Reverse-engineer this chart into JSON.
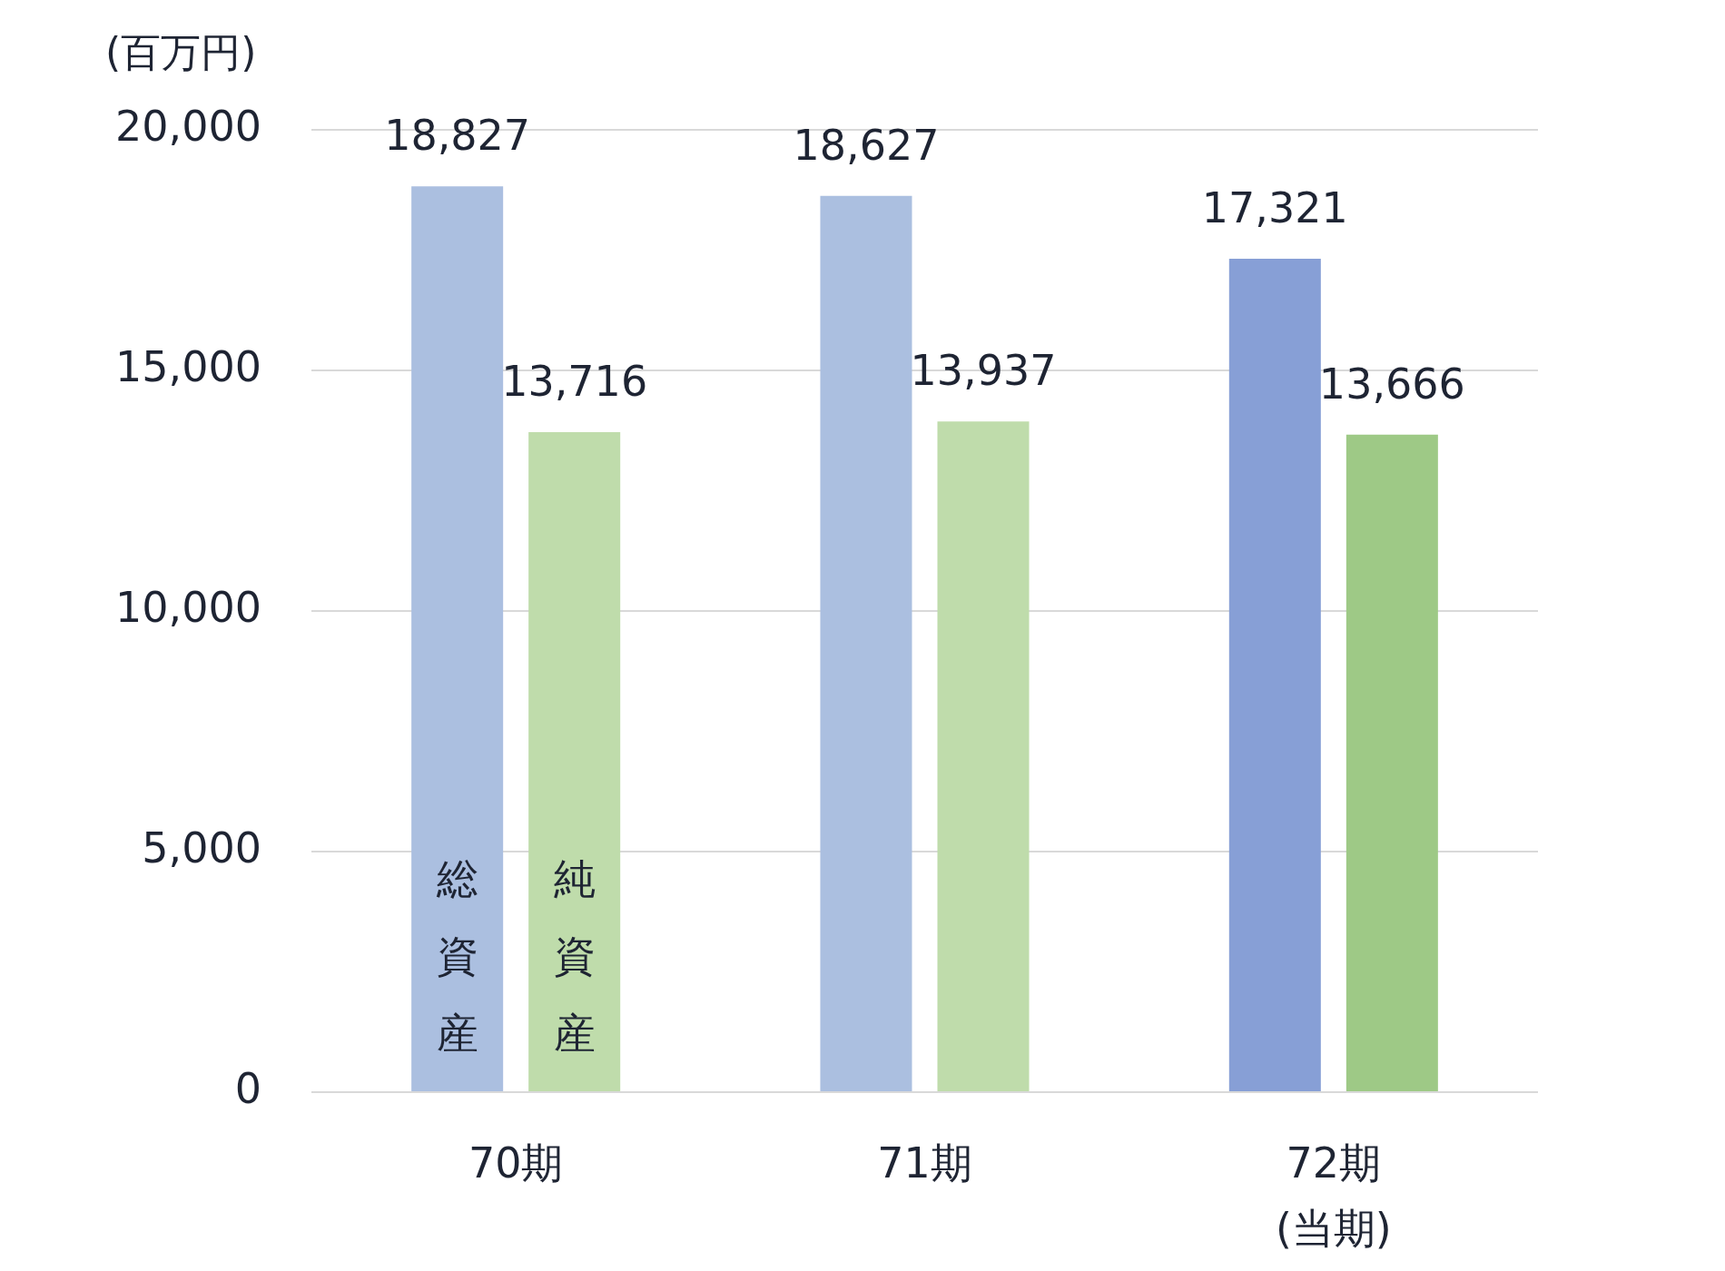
{
  "chart_data": {
    "type": "bar",
    "ylabel": "(百万円)",
    "categories": [
      "70期",
      "71期",
      "72期\n(当期)"
    ],
    "series": [
      {
        "name": "総資産",
        "colors": [
          "#abbfe0",
          "#abbfe0",
          "#879fd6"
        ],
        "values": [
          18827,
          18627,
          17321
        ],
        "value_labels": [
          "18,827",
          "18,627",
          "17,321"
        ]
      },
      {
        "name": "純資産",
        "colors": [
          "#bfdcab",
          "#bfdcab",
          "#9ec986"
        ],
        "values": [
          13716,
          13937,
          13666
        ],
        "value_labels": [
          "13,716",
          "13,937",
          "13,666"
        ]
      }
    ],
    "ylim": [
      0,
      20000
    ],
    "yticks": [
      0,
      {
        "value": 5000,
        "label": "5,000"
      },
      {
        "value": 10000,
        "label": "10,000"
      },
      {
        "value": 15000,
        "label": "15,000"
      },
      {
        "value": 20000,
        "label": "20,000"
      }
    ],
    "grid": "y",
    "legend": false
  }
}
